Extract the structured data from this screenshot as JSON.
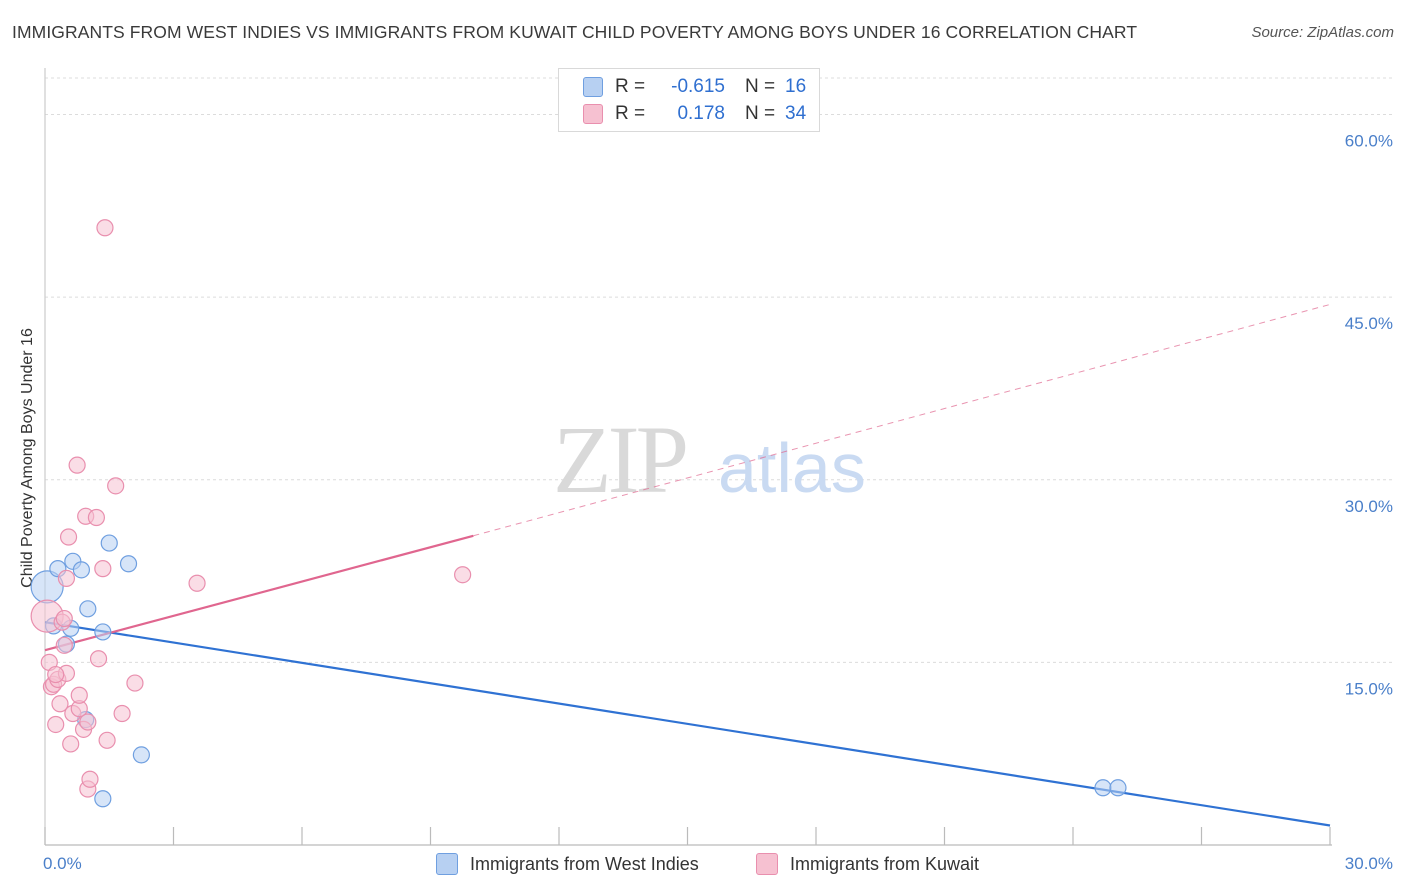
{
  "title": "IMMIGRANTS FROM WEST INDIES VS IMMIGRANTS FROM KUWAIT CHILD POVERTY AMONG BOYS UNDER 16 CORRELATION CHART",
  "source": "Source: ZipAtlas.com",
  "watermark": {
    "zip": "ZIP",
    "atlas": "atlas"
  },
  "colors": {
    "blue_fill": "#b7d0f2",
    "blue_stroke": "#6f9fe0",
    "blue_line": "#2f72d3",
    "pink_fill": "#f6c1d1",
    "pink_stroke": "#e98fae",
    "pink_line": "#e0668f",
    "tick_text": "#4a7fc9",
    "grid": "#dcdcdc"
  },
  "legend": {
    "r_label": "R =",
    "n_label": "N =",
    "rows": [
      {
        "series": "Immigrants from West Indies",
        "r": "-0.615",
        "n": "16"
      },
      {
        "series": "Immigrants from Kuwait",
        "r": "0.178",
        "n": "34"
      }
    ]
  },
  "chart_data": {
    "type": "scatter",
    "title": "IMMIGRANTS FROM WEST INDIES VS IMMIGRANTS FROM KUWAIT CHILD POVERTY AMONG BOYS UNDER 16 CORRELATION CHART",
    "xlabel": "",
    "ylabel": "Child Poverty Among Boys Under 16",
    "xlim": [
      0,
      30
    ],
    "ylim": [
      0,
      63
    ],
    "x_tick_labels": [
      "0.0%",
      "30.0%"
    ],
    "y_ticks": [
      15,
      30,
      45,
      60
    ],
    "y_tick_labels": [
      "15.0%",
      "30.0%",
      "45.0%",
      "60.0%"
    ],
    "grid": true,
    "series": [
      {
        "name": "Immigrants from West Indies",
        "color": "#6f9fe0",
        "points": [
          {
            "x": 0.05,
            "y": 21.2,
            "big": true
          },
          {
            "x": 0.2,
            "y": 18.0
          },
          {
            "x": 0.3,
            "y": 22.7
          },
          {
            "x": 0.5,
            "y": 16.5
          },
          {
            "x": 0.6,
            "y": 17.8
          },
          {
            "x": 0.65,
            "y": 23.3
          },
          {
            "x": 0.85,
            "y": 22.6
          },
          {
            "x": 0.95,
            "y": 10.3
          },
          {
            "x": 1.0,
            "y": 19.4
          },
          {
            "x": 1.35,
            "y": 3.8
          },
          {
            "x": 1.35,
            "y": 17.5
          },
          {
            "x": 1.5,
            "y": 24.8
          },
          {
            "x": 1.95,
            "y": 23.1
          },
          {
            "x": 2.25,
            "y": 7.4
          },
          {
            "x": 24.7,
            "y": 4.7
          },
          {
            "x": 25.05,
            "y": 4.7
          }
        ],
        "trend": {
          "x0": 0,
          "y0": 18.3,
          "x1": 30,
          "y1": 1.6
        }
      },
      {
        "name": "Immigrants from Kuwait",
        "color": "#e98fae",
        "points": [
          {
            "x": 0.05,
            "y": 18.8,
            "big": true
          },
          {
            "x": 0.1,
            "y": 15.0
          },
          {
            "x": 0.15,
            "y": 13.0
          },
          {
            "x": 0.2,
            "y": 13.2
          },
          {
            "x": 0.25,
            "y": 9.9
          },
          {
            "x": 0.3,
            "y": 13.6
          },
          {
            "x": 0.35,
            "y": 11.6
          },
          {
            "x": 0.4,
            "y": 18.3
          },
          {
            "x": 0.45,
            "y": 16.4
          },
          {
            "x": 0.5,
            "y": 14.1
          },
          {
            "x": 0.5,
            "y": 21.9
          },
          {
            "x": 0.55,
            "y": 25.3
          },
          {
            "x": 0.6,
            "y": 8.3
          },
          {
            "x": 0.65,
            "y": 10.8
          },
          {
            "x": 0.75,
            "y": 31.2
          },
          {
            "x": 0.8,
            "y": 11.2
          },
          {
            "x": 0.8,
            "y": 12.3
          },
          {
            "x": 0.9,
            "y": 9.5
          },
          {
            "x": 0.95,
            "y": 27.0
          },
          {
            "x": 1.0,
            "y": 10.1
          },
          {
            "x": 1.0,
            "y": 4.6
          },
          {
            "x": 1.05,
            "y": 5.4
          },
          {
            "x": 1.2,
            "y": 26.9
          },
          {
            "x": 1.25,
            "y": 15.3
          },
          {
            "x": 1.35,
            "y": 22.7
          },
          {
            "x": 1.4,
            "y": 50.7
          },
          {
            "x": 1.45,
            "y": 8.6
          },
          {
            "x": 1.65,
            "y": 29.5
          },
          {
            "x": 1.8,
            "y": 10.8
          },
          {
            "x": 2.1,
            "y": 13.3
          },
          {
            "x": 3.55,
            "y": 21.5
          },
          {
            "x": 9.75,
            "y": 22.2
          },
          {
            "x": 0.25,
            "y": 14.0
          },
          {
            "x": 0.45,
            "y": 18.6
          }
        ],
        "trend": {
          "x0": 0,
          "y0": 16.0,
          "x1": 10.0,
          "y1": 25.4
        },
        "trend_dashed": {
          "x0": 10.0,
          "y0": 25.4,
          "x1": 30,
          "y1": 44.4
        }
      }
    ]
  }
}
